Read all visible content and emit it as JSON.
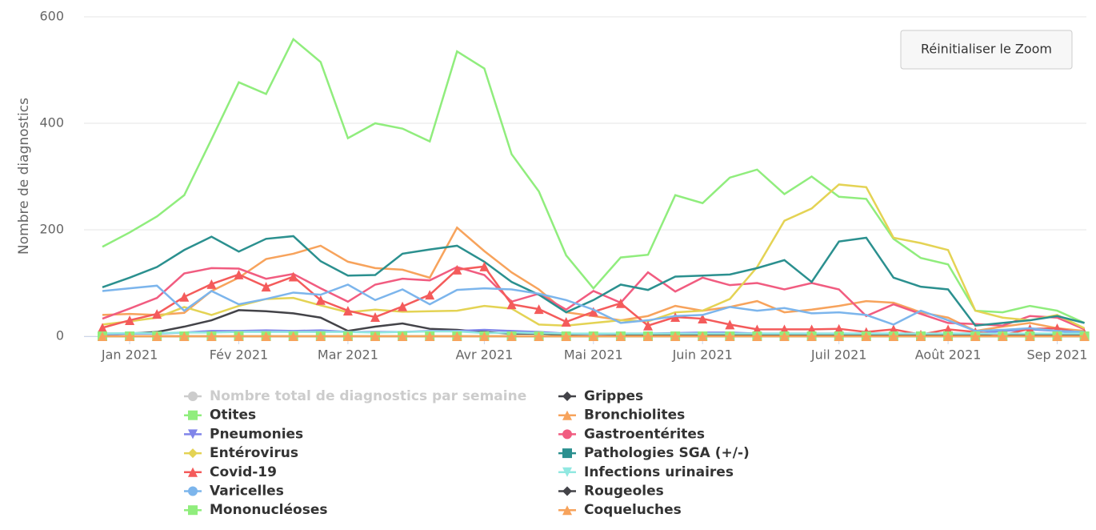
{
  "chart_data": {
    "type": "line",
    "y_axis_label": "Nombre de diagnostics",
    "button": "Réinitialiser le Zoom",
    "categories": [
      null,
      "Jan 2021",
      null,
      null,
      null,
      "Fév 2021",
      null,
      null,
      null,
      "Mar 2021",
      null,
      null,
      null,
      null,
      "Avr 2021",
      null,
      null,
      null,
      "Mai 2021",
      null,
      null,
      null,
      "Juin 2021",
      null,
      null,
      null,
      null,
      "Juil 2021",
      null,
      null,
      null,
      "Août 2021",
      null,
      null,
      null,
      "Sep 2021",
      null
    ],
    "ylim": [
      0,
      600
    ],
    "yticks": [
      0,
      200,
      400,
      600
    ],
    "grid": true,
    "series": [
      {
        "name": "Nombre total de diagnostics par semaine",
        "color": "#cccccc",
        "symbol": "circle",
        "visible": false,
        "values": [
          null,
          null,
          null,
          null,
          null,
          null,
          null,
          null,
          null,
          null,
          null,
          null,
          null,
          null,
          null,
          null,
          null,
          null,
          null,
          null,
          null,
          null,
          null,
          null,
          null,
          null,
          null,
          null,
          null,
          null,
          null,
          null,
          null,
          null,
          null,
          null,
          null
        ]
      },
      {
        "name": "Grippes",
        "color": "#434348",
        "symbol": "diamond",
        "values": [
          5,
          5,
          8,
          18,
          30,
          49,
          47,
          43,
          35,
          10,
          18,
          24,
          14,
          12,
          8,
          5,
          5,
          3,
          3,
          3,
          3,
          3,
          3,
          3,
          3,
          3,
          3,
          3,
          3,
          3,
          3,
          3,
          3,
          3,
          3,
          3,
          3
        ]
      },
      {
        "name": "Otites",
        "color": "#90ed7d",
        "symbol": "square",
        "values": [
          168,
          195,
          225,
          265,
          370,
          477,
          455,
          558,
          515,
          372,
          400,
          390,
          366,
          535,
          503,
          342,
          272,
          152,
          90,
          148,
          153,
          265,
          250,
          298,
          313,
          267,
          300,
          262,
          258,
          183,
          147,
          135,
          48,
          45,
          57,
          48,
          25
        ]
      },
      {
        "name": "Bronchiolites",
        "color": "#f7a35c",
        "symbol": "triangle",
        "values": [
          40,
          42,
          40,
          44,
          85,
          110,
          145,
          155,
          170,
          140,
          128,
          125,
          110,
          204,
          160,
          120,
          88,
          45,
          38,
          30,
          38,
          57,
          48,
          55,
          66,
          45,
          50,
          57,
          66,
          63,
          45,
          35,
          10,
          18,
          25,
          15,
          10
        ]
      },
      {
        "name": "Pneumonies",
        "color": "#8085e9",
        "symbol": "triangle-down",
        "values": [
          3,
          5,
          5,
          7,
          10,
          10,
          11,
          10,
          11,
          8,
          8,
          8,
          10,
          10,
          12,
          10,
          8,
          5,
          4,
          5,
          5,
          6,
          7,
          7,
          5,
          5,
          5,
          5,
          5,
          5,
          5,
          5,
          5,
          10,
          13,
          10,
          5
        ]
      },
      {
        "name": "Gastroentérites",
        "color": "#f15c80",
        "symbol": "circle",
        "values": [
          33,
          52,
          72,
          118,
          128,
          127,
          108,
          117,
          90,
          65,
          97,
          108,
          105,
          130,
          115,
          65,
          80,
          50,
          85,
          63,
          120,
          84,
          110,
          96,
          100,
          88,
          100,
          88,
          38,
          60,
          42,
          25,
          23,
          20,
          38,
          35,
          13
        ]
      },
      {
        "name": "Entérovirus",
        "color": "#e4d354",
        "symbol": "diamond",
        "values": [
          22,
          28,
          35,
          55,
          40,
          57,
          70,
          72,
          58,
          45,
          50,
          46,
          47,
          48,
          57,
          52,
          22,
          20,
          25,
          30,
          28,
          45,
          48,
          70,
          130,
          217,
          240,
          285,
          280,
          185,
          175,
          162,
          48,
          35,
          30,
          40,
          15
        ]
      },
      {
        "name": "Pathologies SGA (+/-)",
        "color": "#2b908f",
        "symbol": "square",
        "values": [
          92,
          110,
          130,
          162,
          187,
          159,
          183,
          188,
          141,
          114,
          115,
          155,
          163,
          170,
          140,
          102,
          78,
          45,
          68,
          97,
          87,
          112,
          114,
          116,
          128,
          143,
          102,
          178,
          185,
          110,
          93,
          88,
          20,
          25,
          30,
          38,
          25
        ]
      },
      {
        "name": "Covid-19",
        "color": "#f45b5b",
        "symbol": "triangle",
        "marker": true,
        "values": [
          16,
          30,
          42,
          74,
          98,
          116,
          93,
          112,
          68,
          48,
          36,
          56,
          78,
          125,
          131,
          60,
          51,
          27,
          46,
          62,
          20,
          36,
          33,
          22,
          13,
          13,
          13,
          14,
          8,
          13,
          3,
          13,
          8,
          2,
          14,
          15,
          5
        ]
      },
      {
        "name": "Infections urinaires",
        "color": "#91e8e1",
        "symbol": "triangle-down",
        "values": [
          5,
          6,
          6,
          7,
          7,
          8,
          8,
          8,
          8,
          8,
          7,
          8,
          9,
          9,
          6,
          7,
          6,
          5,
          5,
          5,
          5,
          5,
          5,
          5,
          5,
          5,
          5,
          5,
          5,
          5,
          5,
          5,
          5,
          5,
          5,
          5,
          5
        ]
      },
      {
        "name": "Varicelles",
        "color": "#7cb5ec",
        "symbol": "circle",
        "values": [
          85,
          90,
          95,
          48,
          85,
          60,
          70,
          82,
          78,
          97,
          68,
          88,
          60,
          87,
          90,
          88,
          80,
          68,
          50,
          25,
          30,
          38,
          40,
          55,
          48,
          53,
          43,
          45,
          40,
          22,
          48,
          30,
          10,
          12,
          15,
          10,
          8
        ]
      },
      {
        "name": "Rougeoles",
        "color": "#434348",
        "symbol": "diamond",
        "values": [
          0,
          0,
          0,
          0,
          0,
          0,
          0,
          0,
          0,
          0,
          0,
          0,
          0,
          0,
          0,
          0,
          0,
          0,
          0,
          0,
          0,
          0,
          0,
          0,
          0,
          0,
          0,
          0,
          0,
          0,
          0,
          0,
          0,
          0,
          0,
          0,
          0
        ]
      },
      {
        "name": "Mononucléoses",
        "color": "#90ed7d",
        "symbol": "square",
        "marker": true,
        "values": [
          0,
          0,
          0,
          0,
          0,
          0,
          0,
          0,
          0,
          0,
          0,
          0,
          0,
          0,
          0,
          0,
          0,
          0,
          0,
          0,
          0,
          0,
          0,
          0,
          0,
          0,
          0,
          0,
          0,
          0,
          0,
          0,
          0,
          0,
          0,
          0,
          0
        ]
      },
      {
        "name": "Coqueluches",
        "color": "#f7a35c",
        "symbol": "triangle",
        "marker": true,
        "values": [
          0,
          0,
          0,
          0,
          0,
          0,
          0,
          0,
          0,
          0,
          0,
          0,
          0,
          0,
          0,
          0,
          0,
          0,
          0,
          0,
          0,
          0,
          0,
          0,
          0,
          0,
          0,
          0,
          0,
          0,
          0,
          0,
          0,
          0,
          0,
          0,
          0
        ]
      }
    ]
  }
}
